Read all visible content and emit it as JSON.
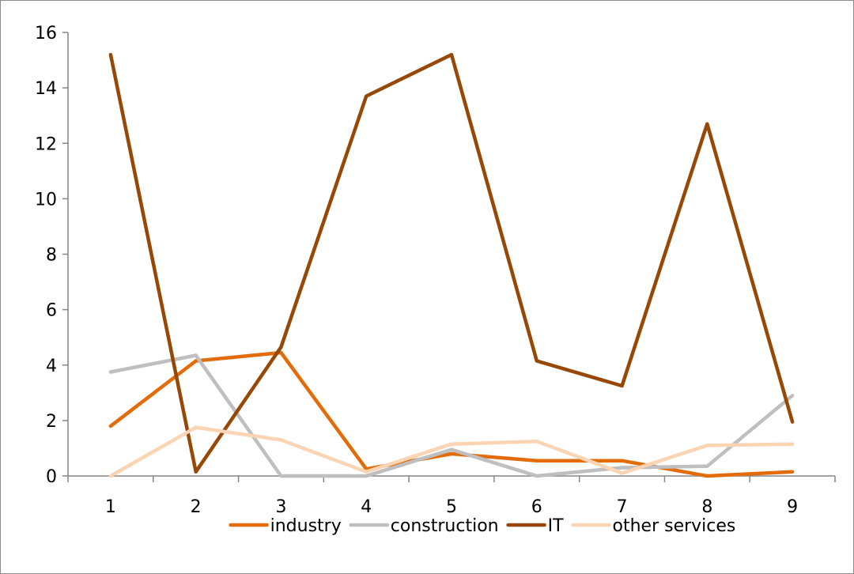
{
  "chart_data": {
    "type": "line",
    "title": "",
    "xlabel": "",
    "ylabel": "",
    "categories": [
      "1",
      "2",
      "3",
      "4",
      "5",
      "6",
      "7",
      "8",
      "9"
    ],
    "ylim": [
      0,
      16
    ],
    "yticks": [
      "0",
      "2",
      "4",
      "6",
      "8",
      "10",
      "12",
      "14",
      "16"
    ],
    "grid": false,
    "legend_position": "bottom",
    "series": [
      {
        "name": "industry",
        "color": "#E36C0A",
        "values": [
          1.8,
          4.15,
          4.45,
          0.25,
          0.8,
          0.55,
          0.55,
          0.0,
          0.15
        ]
      },
      {
        "name": "construction",
        "color": "#BFBFBF",
        "values": [
          3.75,
          4.35,
          0.0,
          0.0,
          0.95,
          0.0,
          0.3,
          0.35,
          2.9
        ]
      },
      {
        "name": "IT",
        "color": "#974806",
        "values": [
          15.2,
          0.15,
          4.65,
          13.7,
          15.2,
          4.15,
          3.25,
          12.7,
          1.95
        ]
      },
      {
        "name": "other services",
        "color": "#FBD4B4",
        "values": [
          0.0,
          1.75,
          1.3,
          0.15,
          1.15,
          1.25,
          0.1,
          1.1,
          1.15
        ]
      }
    ]
  }
}
